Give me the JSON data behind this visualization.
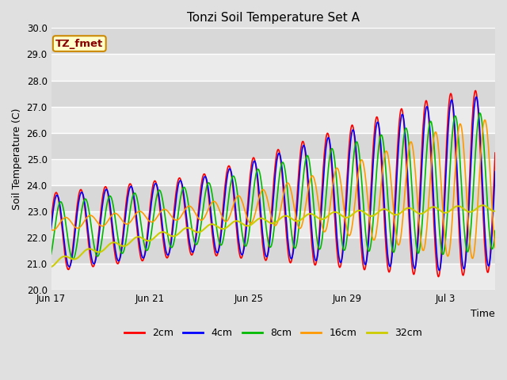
{
  "title": "Tonzi Soil Temperature Set A",
  "xlabel": "Time",
  "ylabel": "Soil Temperature (C)",
  "ylim": [
    20.0,
    30.0
  ],
  "yticks": [
    20.0,
    21.0,
    22.0,
    23.0,
    24.0,
    25.0,
    26.0,
    27.0,
    28.0,
    29.0,
    30.0
  ],
  "xtick_labels": [
    "Jun 17",
    "Jun 21",
    "Jun 25",
    "Jun 29",
    "Jul 3"
  ],
  "xtick_positions": [
    0,
    4,
    8,
    12,
    16
  ],
  "xlim": [
    0,
    18
  ],
  "legend_labels": [
    "2cm",
    "4cm",
    "8cm",
    "16cm",
    "32cm"
  ],
  "line_colors": [
    "#ff0000",
    "#0000ff",
    "#00bb00",
    "#ff9900",
    "#cccc00"
  ],
  "line_widths": [
    1.2,
    1.2,
    1.2,
    1.2,
    1.5
  ],
  "background_color": "#e0e0e0",
  "plot_bg_color": "#d8d8d8",
  "annotation_text": "TZ_fmet",
  "annotation_bg": "#ffffcc",
  "annotation_border": "#cc8800",
  "annotation_text_color": "#880000",
  "n_points": 864
}
